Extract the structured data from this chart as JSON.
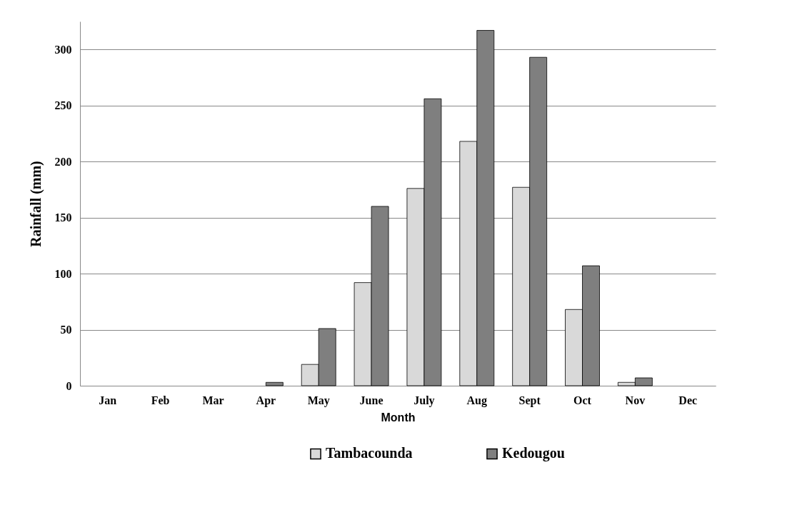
{
  "chart_data": {
    "type": "bar",
    "xlabel": "Month",
    "ylabel": "Rainfall (mm)",
    "categories": [
      "Jan",
      "Feb",
      "Mar",
      "Apr",
      "May",
      "June",
      "July",
      "Aug",
      "Sept",
      "Oct",
      "Nov",
      "Dec"
    ],
    "series": [
      {
        "name": "Tambacounda",
        "color": "#d9d9d9",
        "values": [
          null,
          null,
          null,
          null,
          19,
          92,
          176,
          218,
          177,
          68,
          3,
          null
        ]
      },
      {
        "name": "Kedougou",
        "color": "#7f7f7f",
        "values": [
          null,
          null,
          null,
          3,
          51,
          160,
          256,
          317,
          293,
          107,
          7,
          null
        ]
      }
    ],
    "ylim": [
      0,
      325
    ],
    "yticks": [
      0,
      50,
      100,
      150,
      200,
      250,
      300
    ],
    "grid": "y",
    "legend": "bottom"
  }
}
